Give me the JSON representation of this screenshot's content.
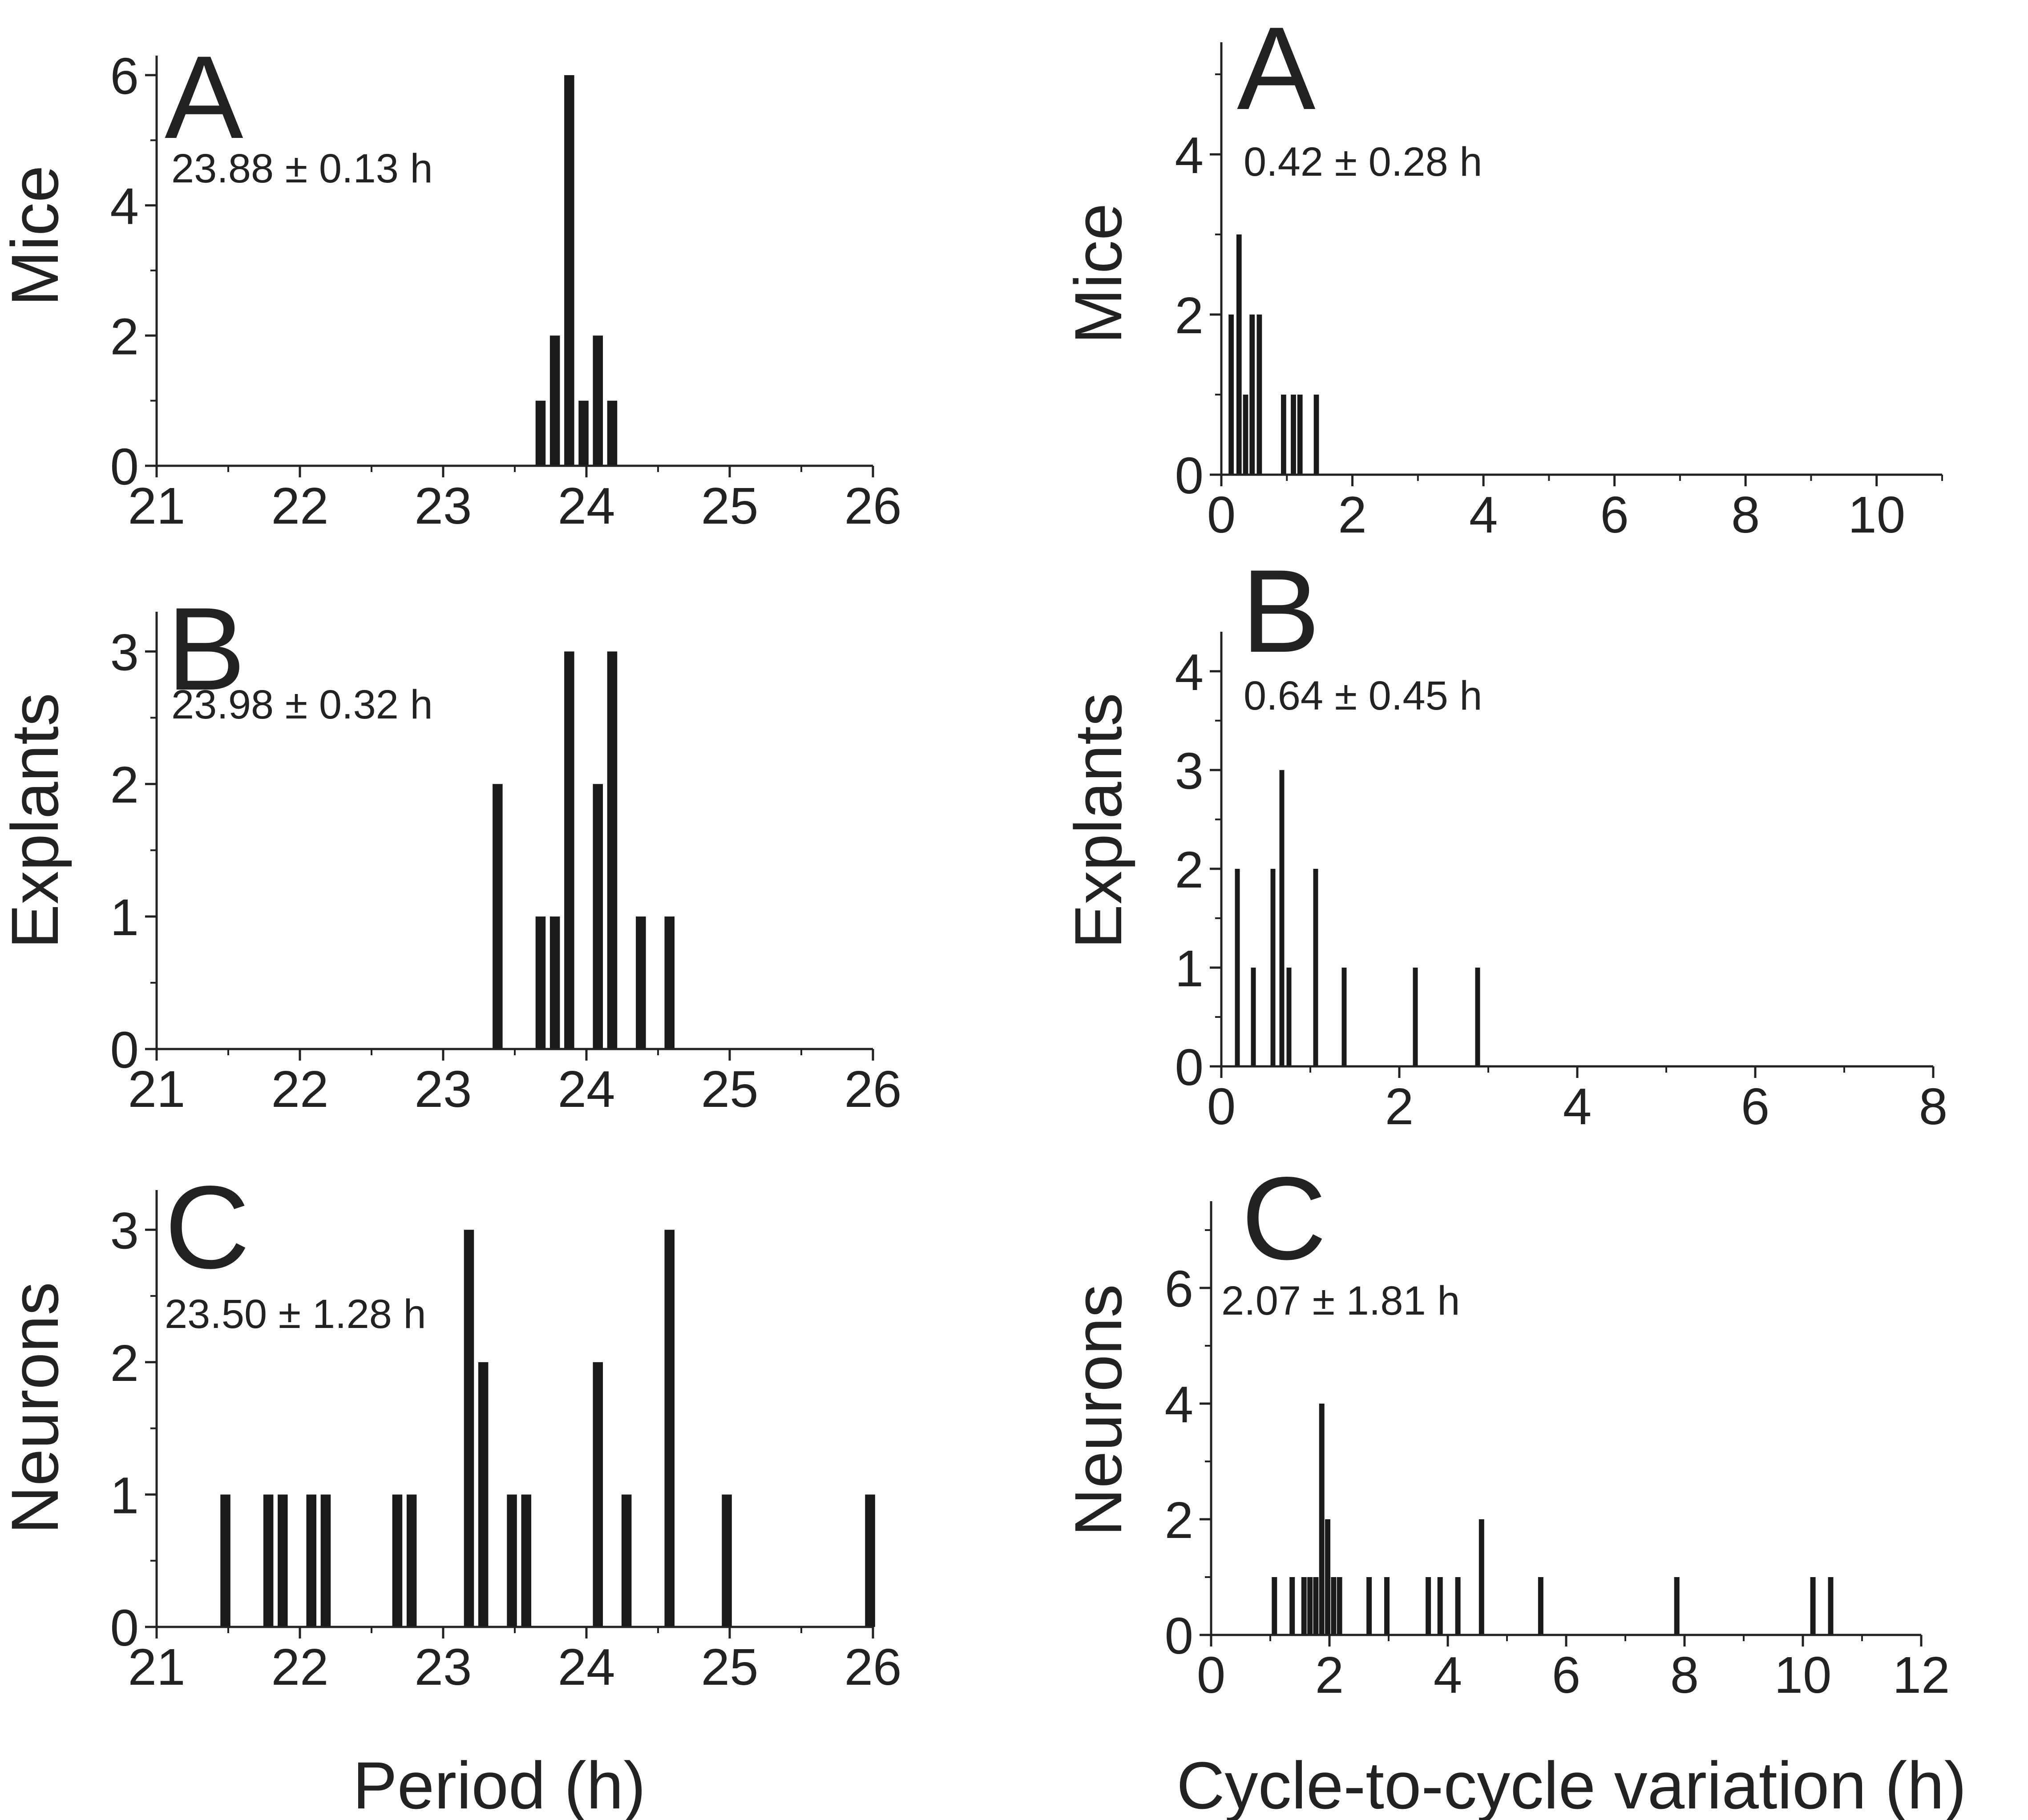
{
  "xlabels": {
    "left": "Period (h)",
    "right": "Cycle-to-cycle variation (h)"
  },
  "chart_data": [
    {
      "type": "bar",
      "panel": "A",
      "row_label": "Mice",
      "stat": "23.88 ± 0.13 h",
      "xlabel": "Period (h)",
      "ylabel": "Mice",
      "xlim": [
        21,
        26
      ],
      "ylim": [
        0,
        6.3
      ],
      "xticks": [
        21,
        22,
        23,
        24,
        25,
        26
      ],
      "yticks": [
        0,
        2,
        4,
        6
      ],
      "x_minor_step": 0.5,
      "y_minor_step": 1,
      "bar_width": 0.07,
      "bars": [
        [
          23.68,
          1
        ],
        [
          23.78,
          2
        ],
        [
          23.88,
          6
        ],
        [
          23.98,
          1
        ],
        [
          24.08,
          2
        ],
        [
          24.18,
          1
        ]
      ]
    },
    {
      "type": "bar",
      "panel": "A",
      "row_label": "Mice",
      "stat": "0.42 ± 0.28 h",
      "xlabel": "Cycle-to-cycle variation (h)",
      "ylabel": "Mice",
      "xlim": [
        0,
        11
      ],
      "ylim": [
        0,
        5.4
      ],
      "xticks": [
        0,
        2,
        4,
        6,
        8,
        10
      ],
      "yticks": [
        0,
        2,
        4
      ],
      "x_minor_step": 1,
      "y_minor_step": 1,
      "bar_width": 0.08,
      "bars": [
        [
          0.15,
          2
        ],
        [
          0.27,
          3
        ],
        [
          0.37,
          1
        ],
        [
          0.47,
          2
        ],
        [
          0.58,
          2
        ],
        [
          0.95,
          1
        ],
        [
          1.1,
          1
        ],
        [
          1.2,
          1
        ],
        [
          1.45,
          1
        ]
      ]
    },
    {
      "type": "bar",
      "panel": "B",
      "row_label": "Explants",
      "stat": "23.98 ± 0.32 h",
      "xlabel": "Period (h)",
      "ylabel": "Explants",
      "xlim": [
        21,
        26
      ],
      "ylim": [
        0,
        3.3
      ],
      "xticks": [
        21,
        22,
        23,
        24,
        25,
        26
      ],
      "yticks": [
        0,
        1,
        2,
        3
      ],
      "x_minor_step": 0.5,
      "y_minor_step": 0.5,
      "bar_width": 0.07,
      "bars": [
        [
          23.38,
          2
        ],
        [
          23.68,
          1
        ],
        [
          23.78,
          1
        ],
        [
          23.88,
          3
        ],
        [
          24.08,
          2
        ],
        [
          24.18,
          3
        ],
        [
          24.38,
          1
        ],
        [
          24.58,
          1
        ]
      ]
    },
    {
      "type": "bar",
      "panel": "B",
      "row_label": "Explants",
      "stat": "0.64 ± 0.45 h",
      "xlabel": "Cycle-to-cycle variation (h)",
      "ylabel": "Explants",
      "xlim": [
        0,
        8
      ],
      "ylim": [
        0,
        4.4
      ],
      "xticks": [
        0,
        2,
        4,
        6,
        8
      ],
      "yticks": [
        0,
        1,
        2,
        3,
        4
      ],
      "x_minor_step": 1,
      "y_minor_step": 0.5,
      "bar_width": 0.055,
      "bars": [
        [
          0.18,
          2
        ],
        [
          0.36,
          1
        ],
        [
          0.58,
          2
        ],
        [
          0.68,
          3
        ],
        [
          0.76,
          1
        ],
        [
          1.06,
          2
        ],
        [
          1.38,
          1
        ],
        [
          2.18,
          1
        ],
        [
          2.88,
          1
        ]
      ]
    },
    {
      "type": "bar",
      "panel": "C",
      "row_label": "Neurons",
      "stat": "23.50 ± 1.28 h",
      "xlabel": "Period (h)",
      "ylabel": "Neurons",
      "xlim": [
        21,
        26
      ],
      "ylim": [
        0,
        3.3
      ],
      "xticks": [
        21,
        22,
        23,
        24,
        25,
        26
      ],
      "yticks": [
        0,
        1,
        2,
        3
      ],
      "x_minor_step": 0.5,
      "y_minor_step": 0.5,
      "bar_width": 0.07,
      "bars": [
        [
          21.48,
          1
        ],
        [
          21.78,
          1
        ],
        [
          21.88,
          1
        ],
        [
          22.08,
          1
        ],
        [
          22.18,
          1
        ],
        [
          22.68,
          1
        ],
        [
          22.78,
          1
        ],
        [
          23.18,
          3
        ],
        [
          23.28,
          2
        ],
        [
          23.48,
          1
        ],
        [
          23.58,
          1
        ],
        [
          24.08,
          2
        ],
        [
          24.28,
          1
        ],
        [
          24.58,
          3
        ],
        [
          24.98,
          1
        ],
        [
          25.98,
          1
        ]
      ]
    },
    {
      "type": "bar",
      "panel": "C",
      "row_label": "Neurons",
      "stat": "2.07 ± 1.81 h",
      "xlabel": "Cycle-to-cycle variation (h)",
      "ylabel": "Neurons",
      "xlim": [
        0,
        12
      ],
      "ylim": [
        0,
        7.5
      ],
      "xticks": [
        0,
        2,
        4,
        6,
        8,
        10,
        12
      ],
      "yticks": [
        0,
        2,
        4,
        6
      ],
      "x_minor_step": 1,
      "y_minor_step": 1,
      "bar_width": 0.09,
      "bars": [
        [
          1.07,
          1
        ],
        [
          1.37,
          1
        ],
        [
          1.57,
          1
        ],
        [
          1.67,
          1
        ],
        [
          1.77,
          1
        ],
        [
          1.87,
          4
        ],
        [
          1.97,
          2
        ],
        [
          2.07,
          1
        ],
        [
          2.17,
          1
        ],
        [
          2.67,
          1
        ],
        [
          2.97,
          1
        ],
        [
          3.67,
          1
        ],
        [
          3.87,
          1
        ],
        [
          4.17,
          1
        ],
        [
          4.57,
          2
        ],
        [
          5.57,
          1
        ],
        [
          7.87,
          1
        ],
        [
          10.17,
          1
        ],
        [
          10.47,
          1
        ]
      ]
    }
  ]
}
